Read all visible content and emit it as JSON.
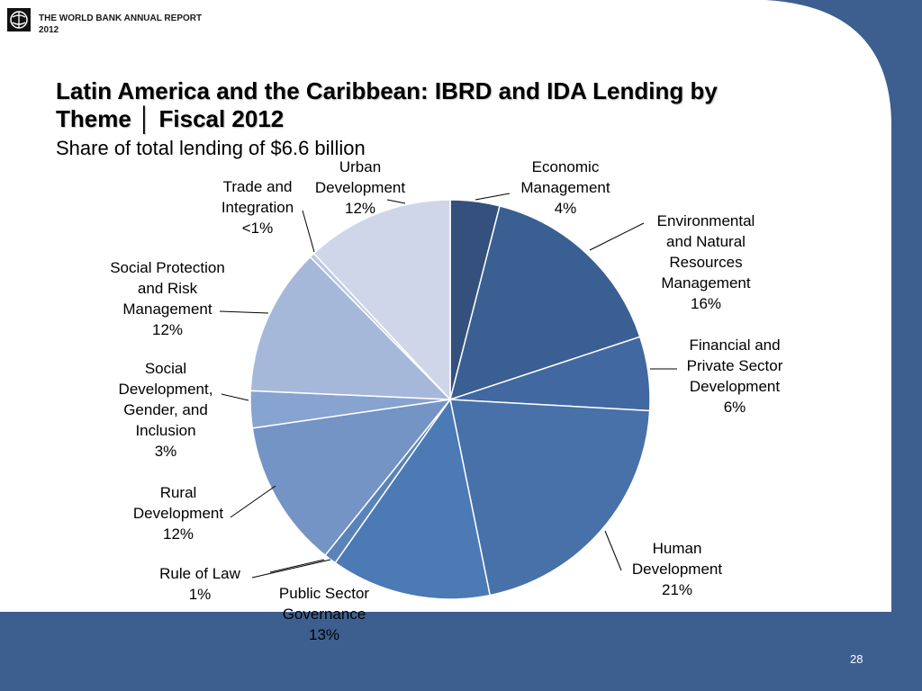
{
  "header": {
    "report_line1": "THE WORLD BANK  ANNUAL REPORT",
    "report_line2": "2012"
  },
  "slide": {
    "title_line1": "Latin America and the Caribbean:  IBRD and IDA Lending by",
    "title_line2": "Theme │ Fiscal 2012",
    "subtitle": "Share of total lending of $6.6 billion",
    "page_number": "28"
  },
  "colors": {
    "background_panel": "#3d5f90",
    "title_text": "#000000"
  },
  "chart_data": {
    "type": "pie",
    "title": "Latin America and the Caribbean:  IBRD and IDA Lending by Theme │ Fiscal 2012",
    "subtitle": "Share of total lending of $6.6 billion",
    "total": "$6.6 billion",
    "slices": [
      {
        "name": "Economic Management",
        "label": "Economic\nManagement\n4%",
        "value": 4,
        "color": "#34507c"
      },
      {
        "name": "Environmental and Natural Resources Management",
        "label": "Environmental\nand Natural\nResources\nManagement\n16%",
        "value": 16,
        "color": "#3a5f92"
      },
      {
        "name": "Financial and Private Sector Development",
        "label": "Financial and\nPrivate Sector\nDevelopment\n6%",
        "value": 6,
        "color": "#4168a0"
      },
      {
        "name": "Human Development",
        "label": "Human\nDevelopment\n21%",
        "value": 21,
        "color": "#4771a8"
      },
      {
        "name": "Public Sector Governance",
        "label": "Public Sector\nGovernance\n13%",
        "value": 13,
        "color": "#4b7ab5"
      },
      {
        "name": "Rule of Law",
        "label": "Rule of Law\n1%",
        "value": 1,
        "color": "#5a83ba"
      },
      {
        "name": "Rural Development",
        "label": "Rural\nDevelopment\n12%",
        "value": 12,
        "color": "#7394c5"
      },
      {
        "name": "Social Development, Gender, and Inclusion",
        "label": "Social\nDevelopment,\nGender, and\nInclusion\n3%",
        "value": 3,
        "color": "#87a3cf"
      },
      {
        "name": "Social Protection and Risk Management",
        "label": "Social Protection\nand Risk\nManagement\n12%",
        "value": 12,
        "color": "#a6b8da"
      },
      {
        "name": "Trade and Integration",
        "label": "Trade and\nIntegration\n<1%",
        "value": 0.4,
        "color": "#bcc8e3"
      },
      {
        "name": "Urban Development",
        "label": "Urban\nDevelopment\n12%",
        "value": 12,
        "color": "#cfd6ea"
      }
    ]
  }
}
